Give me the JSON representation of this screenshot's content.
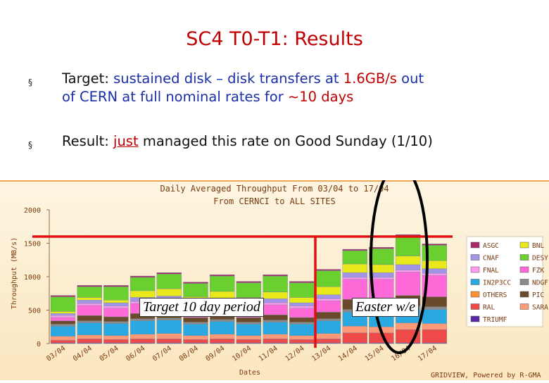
{
  "slide": {
    "title": "SC4 T0-T1: Results",
    "bullets": [
      {
        "marker": "§",
        "line1": {
          "lead": "Target: ",
          "rest1": "sustained disk – disk transfers at ",
          "rate": "1.6GB/s",
          "rest2": " out"
        },
        "line2": {
          "lead": "of CERN at full nominal rates for ",
          "days": "~10 days"
        }
      },
      {
        "marker": "§",
        "line1": {
          "lead": "Result: ",
          "just": "just",
          "rest": " managed this rate on Good Sunday (1/10)"
        }
      }
    ]
  },
  "annotations": {
    "target_period": "Target 10 day period",
    "easter": "Easter w/e",
    "colors": {
      "target_line": "#e31010",
      "ellipse": "#000000"
    }
  },
  "chart_data": {
    "type": "bar",
    "stacked": true,
    "title": "Daily Averaged Throughput From 03/04 to 17/04",
    "subtitle": "From CERNCI to ALL SITES",
    "ylabel": "Throughput (MB/s)",
    "xlabel": "Dates",
    "footer": "GRIDVIEW, Powered by R-GMA",
    "ylim": [
      0,
      2000
    ],
    "yticks": [
      0,
      500,
      1000,
      1500,
      2000
    ],
    "target_rate": 1600,
    "target_start": "13/04",
    "legend_position": "right",
    "categories": [
      "03/04",
      "04/04",
      "05/04",
      "06/04",
      "07/04",
      "08/04",
      "09/04",
      "10/04",
      "11/04",
      "12/04",
      "13/04",
      "14/04",
      "15/04",
      "16/04",
      "17/04"
    ],
    "series": [
      {
        "name": "TRIUMF",
        "color": "#5a2aa5",
        "values": [
          10,
          10,
          10,
          10,
          10,
          10,
          10,
          10,
          10,
          10,
          10,
          10,
          10,
          10,
          10
        ]
      },
      {
        "name": "RAL",
        "color": "#ee4a4a",
        "values": [
          40,
          60,
          50,
          60,
          60,
          50,
          60,
          50,
          60,
          50,
          60,
          150,
          150,
          200,
          200
        ]
      },
      {
        "name": "SARA",
        "color": "#ff9a78",
        "values": [
          60,
          60,
          60,
          70,
          80,
          60,
          70,
          60,
          70,
          60,
          80,
          100,
          90,
          100,
          90
        ]
      },
      {
        "name": "IN2P3CC",
        "color": "#2aa8e2",
        "values": [
          150,
          180,
          180,
          200,
          200,
          170,
          190,
          170,
          180,
          170,
          190,
          210,
          200,
          210,
          210
        ]
      },
      {
        "name": "NDGF",
        "color": "#8a8a8a",
        "values": [
          30,
          30,
          30,
          30,
          30,
          30,
          30,
          30,
          30,
          30,
          30,
          40,
          40,
          40,
          40
        ]
      },
      {
        "name": "PIC",
        "color": "#6a4a2a",
        "values": [
          50,
          80,
          70,
          80,
          90,
          70,
          80,
          70,
          80,
          70,
          100,
          150,
          150,
          160,
          150
        ]
      },
      {
        "name": "FZK",
        "color": "#ff6ad8",
        "values": [
          50,
          150,
          130,
          150,
          150,
          140,
          150,
          140,
          150,
          140,
          170,
          300,
          320,
          350,
          320
        ]
      },
      {
        "name": "FNAL",
        "color": "#ff9cf0",
        "values": [
          30,
          30,
          30,
          30,
          30,
          30,
          30,
          30,
          30,
          30,
          30,
          30,
          30,
          30,
          30
        ]
      },
      {
        "name": "CNAF",
        "color": "#a494e8",
        "values": [
          30,
          50,
          50,
          60,
          60,
          50,
          60,
          50,
          60,
          50,
          60,
          70,
          70,
          80,
          70
        ]
      },
      {
        "name": "BNL",
        "color": "#e8e81a",
        "values": [
          30,
          40,
          40,
          100,
          110,
          90,
          100,
          80,
          100,
          80,
          120,
          130,
          120,
          130,
          120
        ]
      },
      {
        "name": "DESY",
        "color": "#6ad030",
        "values": [
          220,
          160,
          200,
          200,
          220,
          200,
          230,
          220,
          240,
          220,
          240,
          200,
          240,
          300,
          230
        ]
      },
      {
        "name": "ASGC",
        "color": "#a8286a",
        "values": [
          20,
          20,
          20,
          20,
          20,
          20,
          20,
          20,
          20,
          20,
          20,
          20,
          20,
          20,
          20
        ]
      }
    ]
  }
}
